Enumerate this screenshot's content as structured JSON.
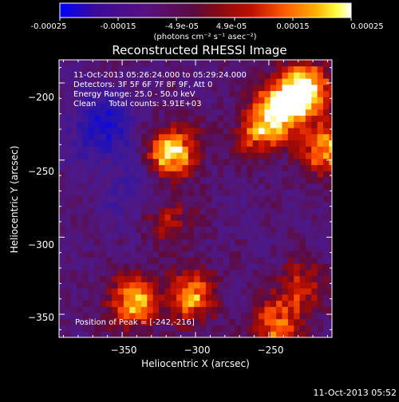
{
  "colorbar": {
    "ticks": [
      "-0.00025",
      "-0.00015",
      "-4.9e-05",
      "4.9e-05",
      "0.00015",
      "0.00025"
    ],
    "unit_line": "(photons cm⁻² s⁻¹ asec⁻²)",
    "range": [
      -0.00025,
      0.00025
    ],
    "colors": [
      "#0000ff",
      "#3a0a9a",
      "#5a1080",
      "#8a0a10",
      "#c01000",
      "#ff5a00",
      "#ffb000",
      "#ffff40",
      "#ffffff"
    ]
  },
  "chart_data": {
    "type": "heatmap",
    "title": "Reconstructed RHESSI Image",
    "xlabel": "Heliocentric X (arcsec)",
    "ylabel": "Heliocentric Y (arcsec)",
    "xlim": [
      -393,
      -207
    ],
    "ylim": [
      -365,
      -185
    ],
    "x_ticks": [
      -350,
      -300,
      -250
    ],
    "y_ticks": [
      -200,
      -250,
      -300,
      -350
    ],
    "x_tick_labels": [
      "−350",
      "−300",
      "−250"
    ],
    "y_tick_labels": [
      "−200",
      "−250",
      "−300",
      "−350"
    ],
    "annotations": [
      "11-Oct-2013 05:26:24.000 to 05:29:24.000",
      "Detectors: 3F 5F 6F 7F 8F 9F, Att 0",
      "Energy Range: 25.0 - 50.0 keV",
      "Clean     Total counts: 3.91E+03"
    ],
    "peak_label": "Position of Peak = [-242,-216]",
    "peak": [
      -242,
      -216
    ],
    "sources": [
      {
        "x": -318,
        "y": -247,
        "amplitude": 1.0
      },
      {
        "x": -242,
        "y": -216,
        "amplitude": 1.0
      },
      {
        "x": -225,
        "y": -205,
        "amplitude": 0.9
      },
      {
        "x": -212,
        "y": -245,
        "amplitude": 0.8
      },
      {
        "x": -258,
        "y": -233,
        "amplitude": 0.7
      },
      {
        "x": -345,
        "y": -343,
        "amplitude": 0.85
      },
      {
        "x": -305,
        "y": -340,
        "amplitude": 0.75
      },
      {
        "x": -322,
        "y": -290,
        "amplitude": 0.5
      },
      {
        "x": -248,
        "y": -360,
        "amplitude": 0.7
      },
      {
        "x": -230,
        "y": -335,
        "amplitude": 0.5
      }
    ],
    "negative_regions": [
      {
        "x": -365,
        "y": -230,
        "amplitude": -0.6
      },
      {
        "x": -340,
        "y": -275,
        "amplitude": -0.3
      }
    ]
  },
  "footer": {
    "timestamp": "11-Oct-2013 05:52"
  }
}
